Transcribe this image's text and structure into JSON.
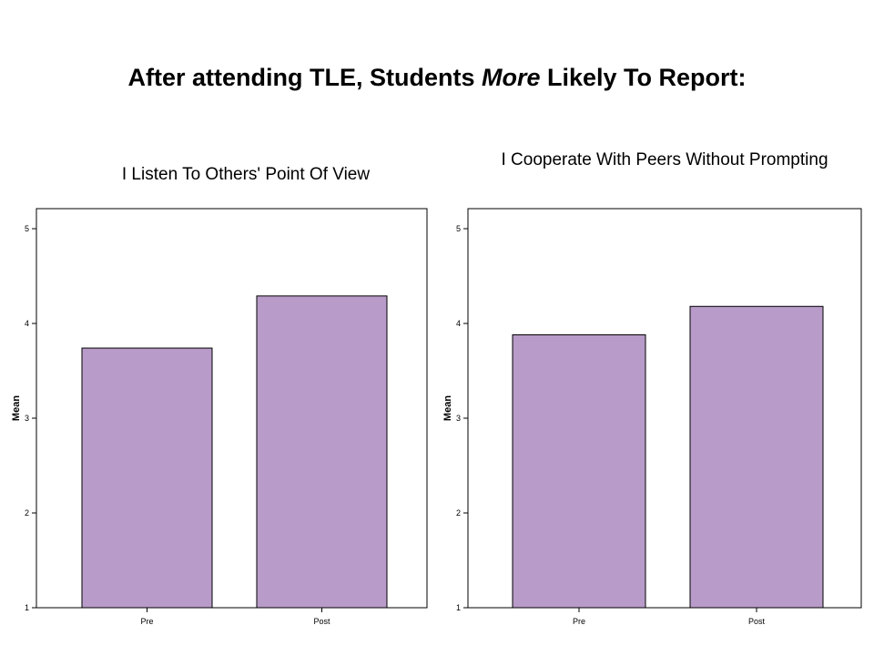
{
  "page": {
    "title_before": "After attending TLE, Students ",
    "title_emphasis": "More",
    "title_after": " Likely To Report:"
  },
  "colors": {
    "bar_fill": "#b89bc8",
    "axis": "#000000",
    "background": "#ffffff"
  },
  "chart_data": [
    {
      "type": "bar",
      "title": "I Listen To Others' Point Of View",
      "xlabel": "",
      "ylabel": "Mean",
      "categories": [
        "Pre",
        "Post"
      ],
      "values": [
        3.74,
        4.29
      ],
      "ylim": [
        1,
        5
      ],
      "yticks": [
        "1",
        "2",
        "3",
        "4",
        "5"
      ],
      "grid": false,
      "legend": "none"
    },
    {
      "type": "bar",
      "title": "I Cooperate With Peers Without Prompting",
      "xlabel": "",
      "ylabel": "Mean",
      "categories": [
        "Pre",
        "Post"
      ],
      "values": [
        3.88,
        4.18
      ],
      "ylim": [
        1,
        5
      ],
      "yticks": [
        "1",
        "2",
        "3",
        "4",
        "5"
      ],
      "grid": false,
      "legend": "none"
    }
  ]
}
